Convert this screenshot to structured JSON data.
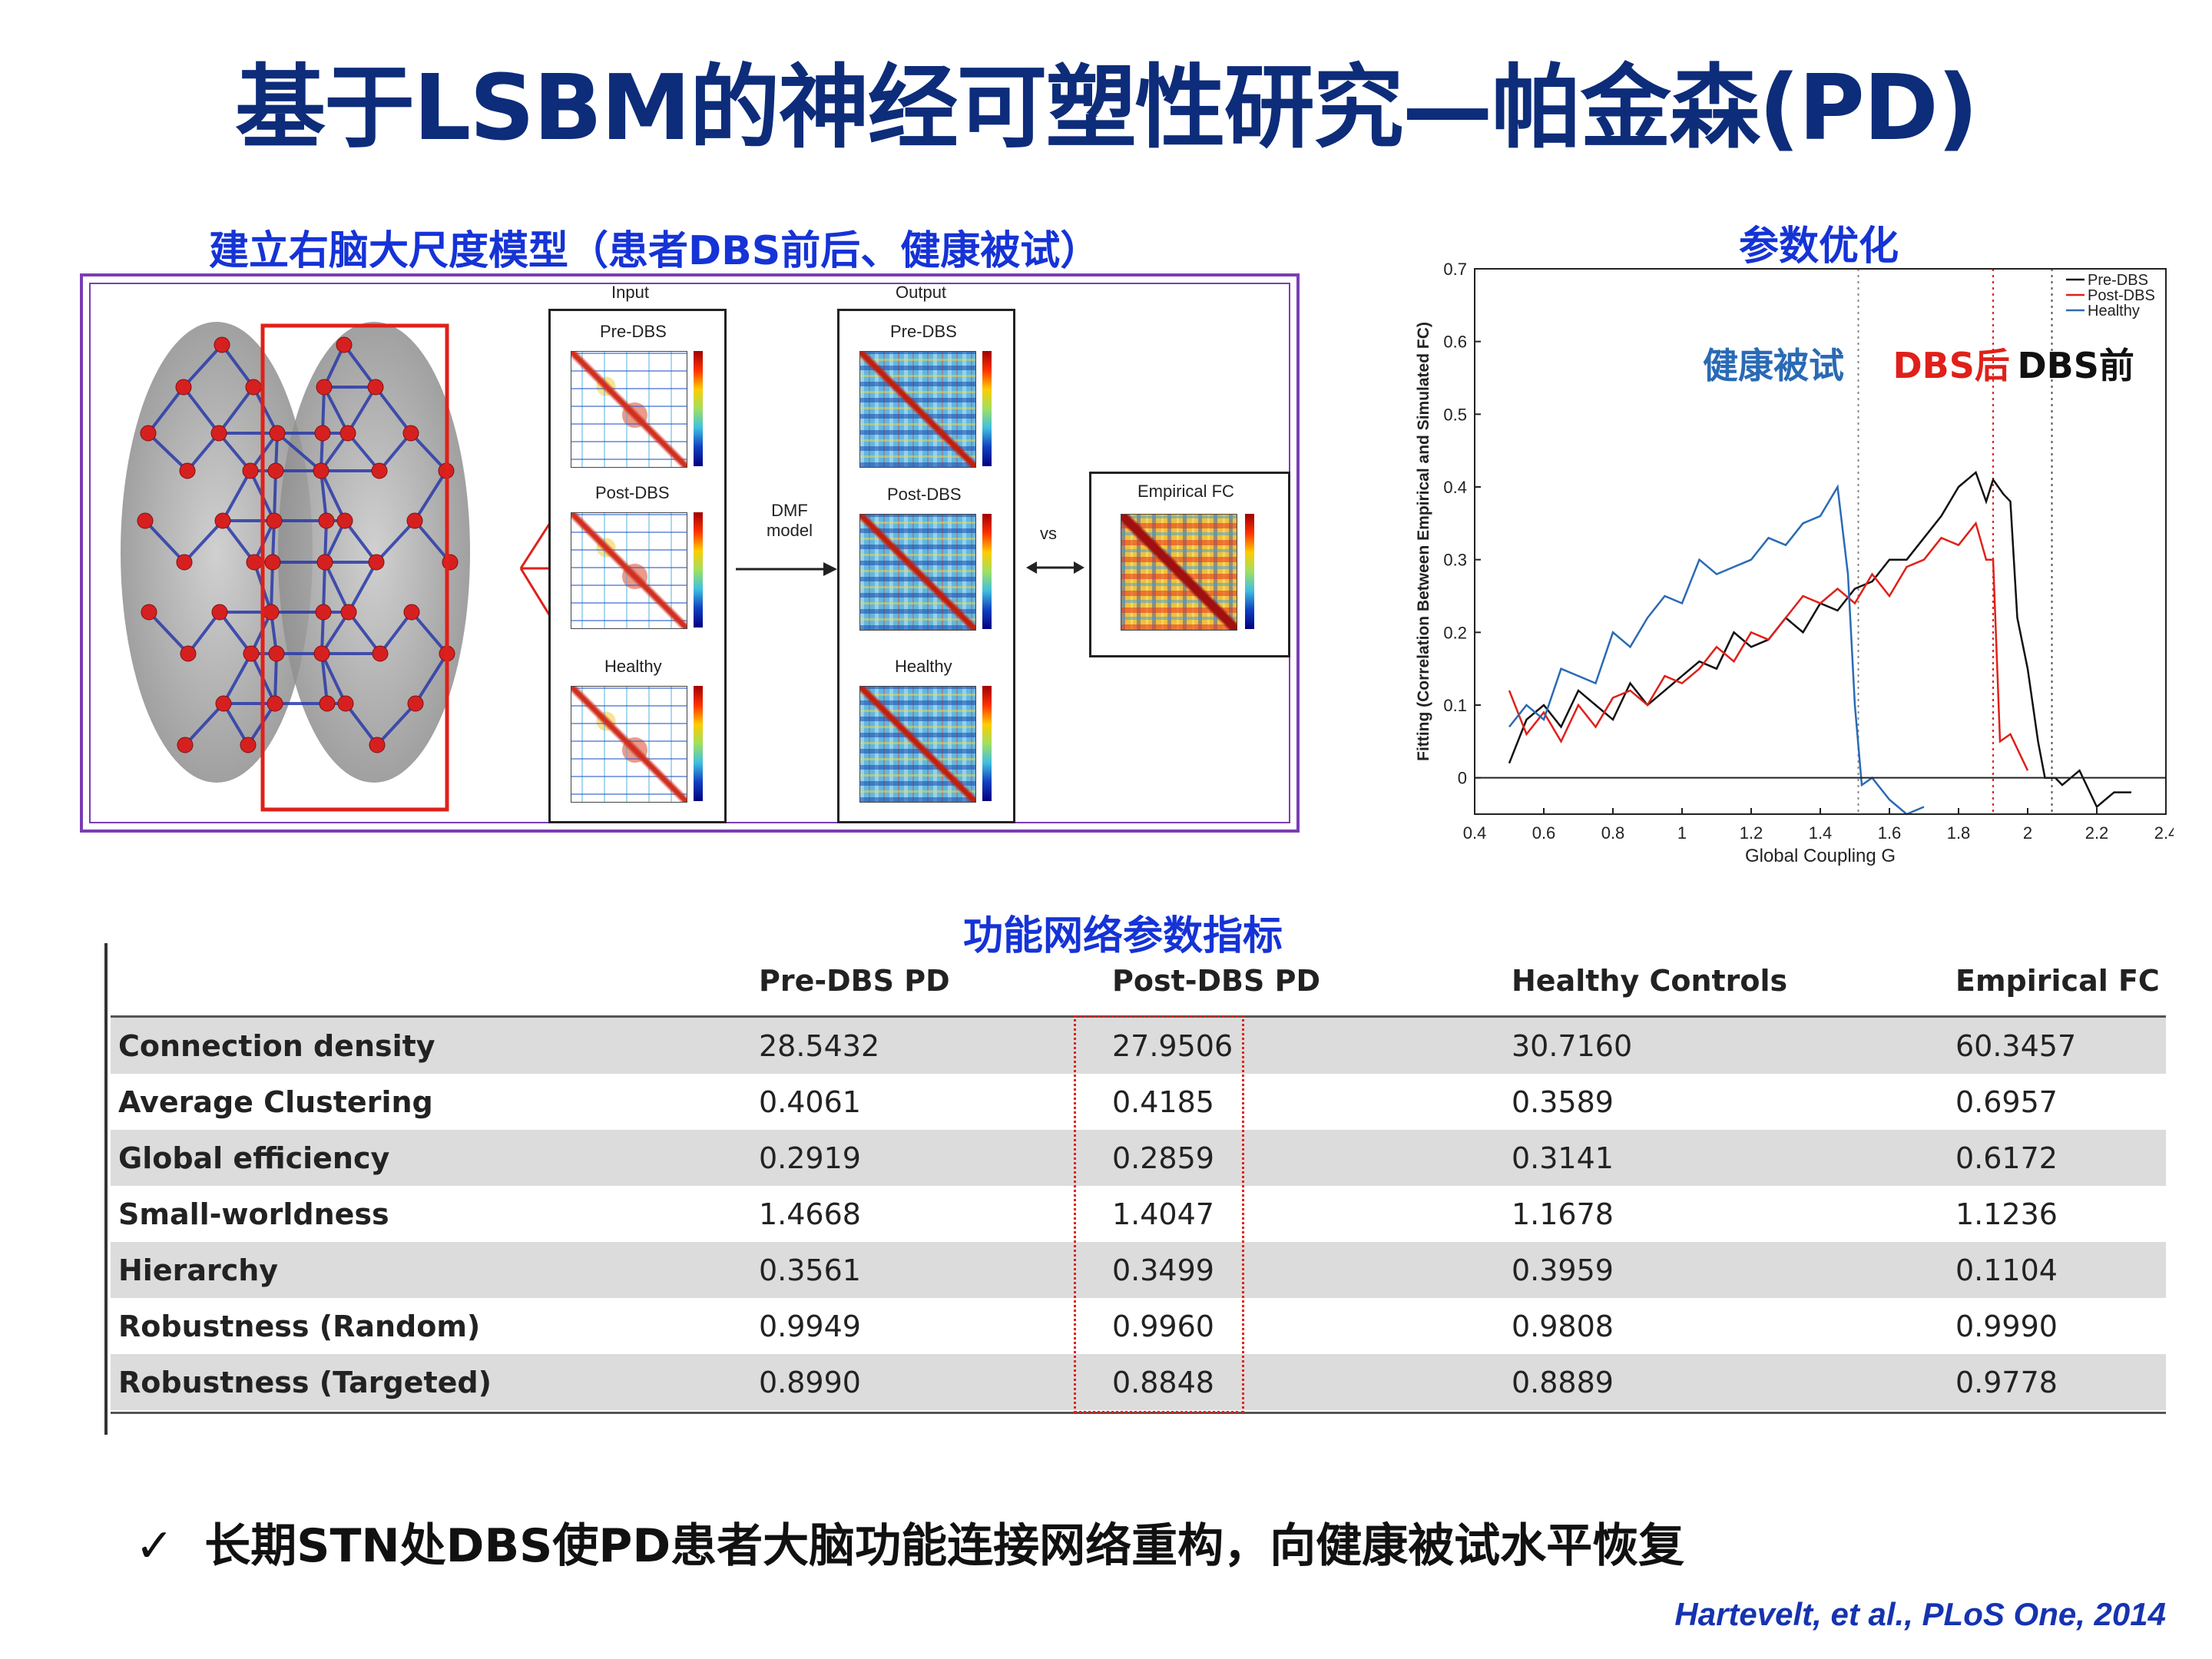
{
  "title": "基于LSBM的神经可塑性研究—帕金森(PD)",
  "left_figure": {
    "heading": "建立右脑大尺度模型（患者DBS前后、健康被试）",
    "input_label": "Input",
    "output_label": "Output",
    "panels_input": [
      "Pre-DBS",
      "Post-DBS",
      "Healthy"
    ],
    "panels_output": [
      "Pre-DBS",
      "Post-DBS",
      "Healthy"
    ],
    "dmf_label_1": "DMF",
    "dmf_label_2": "model",
    "vs_label": "vs",
    "empirical_label": "Empirical FC"
  },
  "chart_heading": "参数优化",
  "chart_data": {
    "type": "line",
    "title": "参数优化",
    "xlabel": "Global Coupling G",
    "ylabel": "Fitting (Correlation Between Empirical and Simulated FC)",
    "xlim": [
      0.4,
      2.4
    ],
    "ylim": [
      -0.05,
      0.7
    ],
    "x_ticks": [
      "0.4",
      "0.6",
      "0.8",
      "1",
      "1.2",
      "1.4",
      "1.6",
      "1.8",
      "2",
      "2.2",
      "2.4"
    ],
    "y_ticks": [
      "0",
      "0.1",
      "0.2",
      "0.3",
      "0.4",
      "0.5",
      "0.6",
      "0.7"
    ],
    "legend_position": "top-right",
    "annotations": [
      {
        "text": "健康被试",
        "color": "#2a6ab5"
      },
      {
        "text": "DBS后",
        "color": "#e0201a"
      },
      {
        "text": "DBS前",
        "color": "#111111"
      }
    ],
    "vlines": [
      {
        "x": 1.51,
        "color": "#888888"
      },
      {
        "x": 1.9,
        "color": "#e0201a"
      },
      {
        "x": 2.07,
        "color": "#555555"
      }
    ],
    "series": [
      {
        "name": "Pre-DBS",
        "color": "#111111",
        "x": [
          0.5,
          0.55,
          0.6,
          0.65,
          0.7,
          0.75,
          0.8,
          0.85,
          0.9,
          0.95,
          1.0,
          1.05,
          1.1,
          1.15,
          1.2,
          1.25,
          1.3,
          1.35,
          1.4,
          1.45,
          1.5,
          1.55,
          1.6,
          1.65,
          1.7,
          1.75,
          1.8,
          1.85,
          1.88,
          1.9,
          1.93,
          1.95,
          1.97,
          2.0,
          2.03,
          2.05,
          2.08,
          2.1,
          2.15,
          2.2,
          2.25,
          2.3
        ],
        "y": [
          0.02,
          0.08,
          0.1,
          0.07,
          0.12,
          0.1,
          0.08,
          0.13,
          0.1,
          0.12,
          0.14,
          0.16,
          0.15,
          0.2,
          0.18,
          0.19,
          0.22,
          0.2,
          0.24,
          0.23,
          0.26,
          0.27,
          0.3,
          0.3,
          0.33,
          0.36,
          0.4,
          0.42,
          0.38,
          0.41,
          0.39,
          0.38,
          0.22,
          0.15,
          0.05,
          0.0,
          0.0,
          -0.01,
          0.01,
          -0.04,
          -0.02,
          -0.02
        ]
      },
      {
        "name": "Post-DBS",
        "color": "#e0201a",
        "x": [
          0.5,
          0.55,
          0.6,
          0.65,
          0.7,
          0.75,
          0.8,
          0.85,
          0.9,
          0.95,
          1.0,
          1.05,
          1.1,
          1.15,
          1.2,
          1.25,
          1.3,
          1.35,
          1.4,
          1.45,
          1.5,
          1.55,
          1.6,
          1.65,
          1.7,
          1.75,
          1.8,
          1.85,
          1.88,
          1.9,
          1.92,
          1.95,
          1.98,
          2.0
        ],
        "y": [
          0.12,
          0.06,
          0.09,
          0.05,
          0.1,
          0.07,
          0.11,
          0.12,
          0.1,
          0.14,
          0.13,
          0.15,
          0.18,
          0.16,
          0.2,
          0.19,
          0.22,
          0.25,
          0.24,
          0.26,
          0.24,
          0.28,
          0.25,
          0.29,
          0.3,
          0.33,
          0.32,
          0.35,
          0.3,
          0.3,
          0.05,
          0.06,
          0.03,
          0.01
        ]
      },
      {
        "name": "Healthy",
        "color": "#2a6ab5",
        "x": [
          0.5,
          0.55,
          0.6,
          0.65,
          0.7,
          0.75,
          0.8,
          0.85,
          0.9,
          0.95,
          1.0,
          1.05,
          1.1,
          1.15,
          1.2,
          1.25,
          1.3,
          1.35,
          1.4,
          1.45,
          1.48,
          1.5,
          1.52,
          1.55,
          1.6,
          1.65,
          1.7
        ],
        "y": [
          0.07,
          0.1,
          0.08,
          0.15,
          0.14,
          0.13,
          0.2,
          0.18,
          0.22,
          0.25,
          0.24,
          0.3,
          0.28,
          0.29,
          0.3,
          0.33,
          0.32,
          0.35,
          0.36,
          0.4,
          0.28,
          0.1,
          -0.01,
          0.0,
          -0.03,
          -0.05,
          -0.04
        ]
      }
    ]
  },
  "table": {
    "heading": "功能网络参数指标",
    "columns": [
      "",
      "Pre-DBS PD",
      "Post-DBS PD",
      "Healthy Controls",
      "Empirical FC"
    ],
    "rows": [
      [
        "Connection density",
        "28.5432",
        "27.9506",
        "30.7160",
        "60.3457"
      ],
      [
        "Average Clustering",
        "0.4061",
        "0.4185",
        "0.3589",
        "0.6957"
      ],
      [
        "Global efficiency",
        "0.2919",
        "0.2859",
        "0.3141",
        "0.6172"
      ],
      [
        "Small-worldness",
        "1.4668",
        "1.4047",
        "1.1678",
        "1.1236"
      ],
      [
        "Hierarchy",
        "0.3561",
        "0.3499",
        "0.3959",
        "0.1104"
      ],
      [
        "Robustness (Random)",
        "0.9949",
        "0.9960",
        "0.9808",
        "0.9990"
      ],
      [
        "Robustness (Targeted)",
        "0.8990",
        "0.8848",
        "0.8889",
        "0.9778"
      ]
    ]
  },
  "conclusion": {
    "check_symbol": "✓",
    "text": "长期STN处DBS使PD患者大脑功能连接网络重构，向健康被试水平恢复"
  },
  "citation": "Hartevelt, et al., PLoS One, 2014"
}
